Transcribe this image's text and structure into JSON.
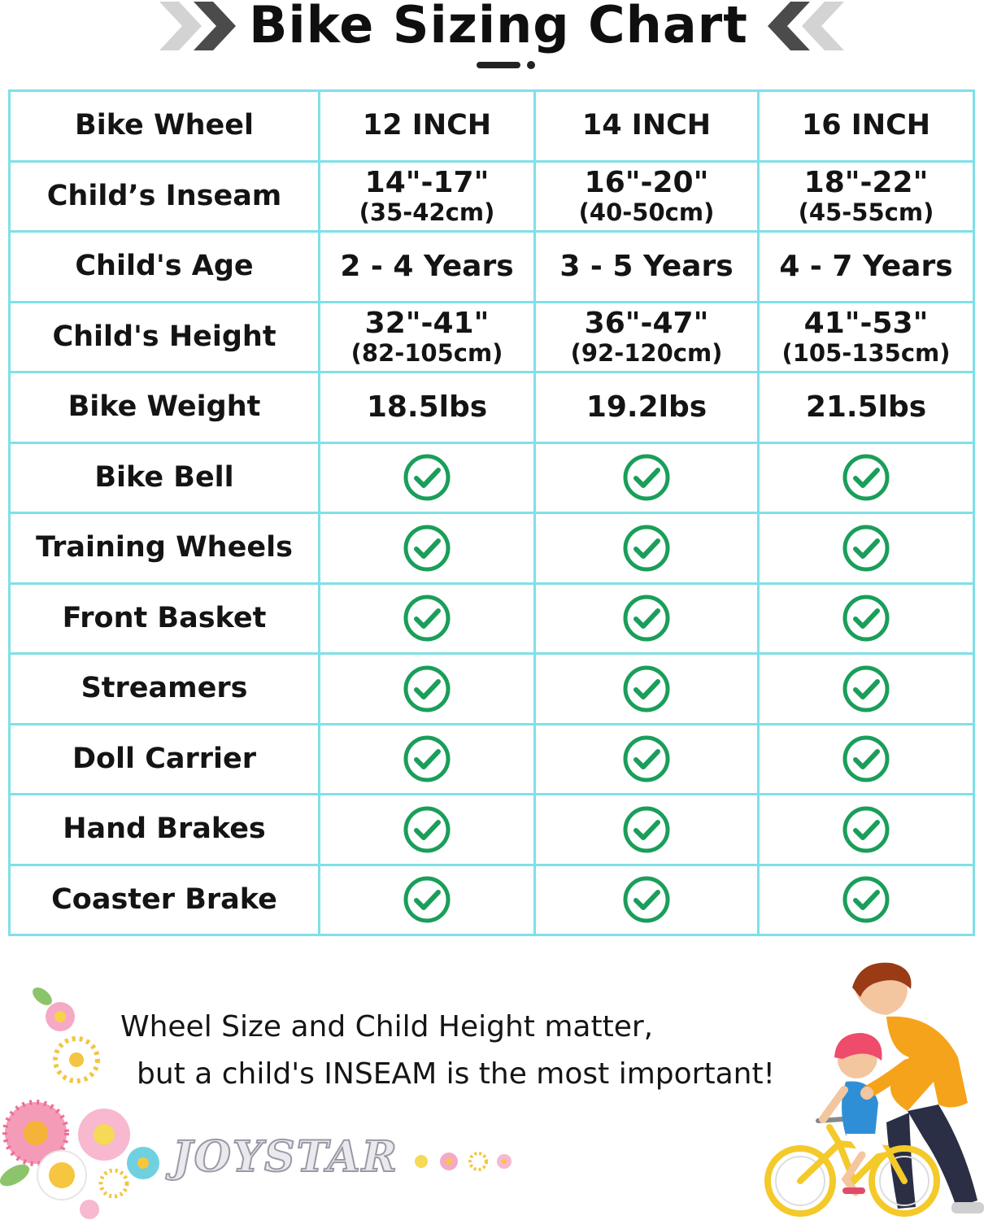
{
  "title": "Bike Sizing Chart",
  "table": {
    "header": {
      "label": "Bike Wheel",
      "sizes": [
        "12 INCH",
        "14 INCH",
        "16 INCH"
      ]
    },
    "rows": [
      {
        "label": "Child’s Inseam",
        "values": [
          {
            "main": "14\"-17\"",
            "sub": "(35-42cm)"
          },
          {
            "main": "16\"-20\"",
            "sub": "(40-50cm)"
          },
          {
            "main": "18\"-22\"",
            "sub": "(45-55cm)"
          }
        ]
      },
      {
        "label": "Child's Age",
        "values": [
          {
            "main": "2 - 4 Years"
          },
          {
            "main": "3 - 5 Years"
          },
          {
            "main": "4 - 7 Years"
          }
        ]
      },
      {
        "label": "Child's Height",
        "values": [
          {
            "main": "32\"-41\"",
            "sub": "(82-105cm)"
          },
          {
            "main": "36\"-47\"",
            "sub": "(92-120cm)"
          },
          {
            "main": "41\"-53\"",
            "sub": "(105-135cm)"
          }
        ]
      },
      {
        "label": "Bike Weight",
        "values": [
          {
            "main": "18.5lbs"
          },
          {
            "main": "19.2lbs"
          },
          {
            "main": "21.5lbs"
          }
        ]
      },
      {
        "label": "Bike Bell",
        "values": [
          "check",
          "check",
          "check"
        ]
      },
      {
        "label": "Training Wheels",
        "values": [
          "check",
          "check",
          "check"
        ]
      },
      {
        "label": "Front Basket",
        "values": [
          "check",
          "check",
          "check"
        ]
      },
      {
        "label": "Streamers",
        "values": [
          "check",
          "check",
          "check"
        ]
      },
      {
        "label": "Doll Carrier",
        "values": [
          "check",
          "check",
          "check"
        ]
      },
      {
        "label": "Hand Brakes",
        "values": [
          "check",
          "check",
          "check"
        ]
      },
      {
        "label": "Coaster Brake",
        "values": [
          "check",
          "check",
          "check"
        ]
      }
    ]
  },
  "footer": {
    "line1": "Wheel Size and Child Height matter,",
    "line2": "but a child's INSEAM is the most important!"
  },
  "brand": "JOYSTAR",
  "colors": {
    "grid": "#7fe0e8",
    "check": "#1a9e5a",
    "title": "#0f0f0f"
  },
  "icons": [
    "chevron-right-icon",
    "chevron-left-icon",
    "check-circle-icon",
    "flower-icon",
    "father-child-bike-illustration"
  ]
}
